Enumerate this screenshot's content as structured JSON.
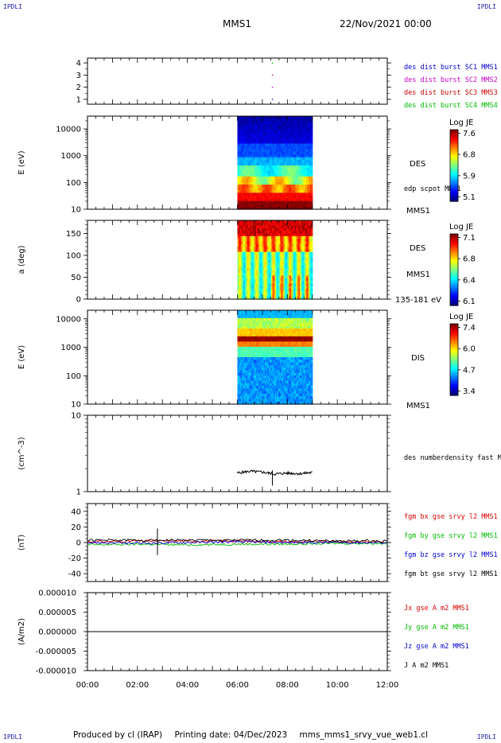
{
  "corners": {
    "tl": "IPDLI",
    "tr": "IPDLI",
    "bl": "IPDLI",
    "br": "IPDLI"
  },
  "header": {
    "spacecraft": "MMS1",
    "date": "22/Nov/2021 00:00"
  },
  "footer": {
    "produced_by": "Produced by cl (IRAP)",
    "printing_date": "Printing date: 04/Dec/2023",
    "product": "mms_mms1_srvy_vue_web1.cl"
  },
  "chart_data": [
    {
      "type": "scatter",
      "ylabel": "",
      "yticks": [
        "1",
        "2",
        "3",
        "4"
      ],
      "ylim": [
        0.6,
        4.4
      ],
      "legend": [
        {
          "text": "des dist burst SC1 MMS1",
          "color": "#0000cc"
        },
        {
          "text": "des dist burst SC2 MMS2",
          "color": "#cc00cc"
        },
        {
          "text": "des dist burst SC3 MMS3",
          "color": "#cc0000"
        },
        {
          "text": "des dist burst SC4 MMS4",
          "color": "#00bb00"
        }
      ],
      "series": [
        {
          "name": "des dist burst SC1 MMS1",
          "x": [
            7.4
          ],
          "y": [
            1
          ]
        },
        {
          "name": "des dist burst SC2 MMS2",
          "x": [
            7.4
          ],
          "y": [
            2
          ]
        },
        {
          "name": "des dist burst SC3 MMS3",
          "x": [
            7.4
          ],
          "y": [
            3
          ]
        },
        {
          "name": "des dist burst SC4 MMS4",
          "x": [
            7.4
          ],
          "y": [
            4
          ]
        }
      ]
    },
    {
      "type": "heatmap",
      "ylabel": "E (eV)",
      "yscale": "log",
      "yticks": [
        "10",
        "100",
        "1000",
        "10000"
      ],
      "ylim": [
        10,
        30000
      ],
      "data_window": [
        6.0,
        9.0
      ],
      "label_right": "DES",
      "label_sub": "edp scpot MMS1",
      "label_bottom": "MMS1",
      "colorbar": {
        "title": "Log JE",
        "ticks": [
          "7.6",
          "6.8",
          "5.9",
          "5.1"
        ],
        "range": [
          5.1,
          7.6
        ]
      }
    },
    {
      "type": "heatmap",
      "ylabel": "a (deg)",
      "yticks": [
        "0",
        "50",
        "100",
        "150"
      ],
      "ylim": [
        0,
        180
      ],
      "data_window": [
        6.0,
        9.0
      ],
      "label_right": "DES",
      "label_sub": "MMS1",
      "label_bottom": "135-181 eV",
      "colorbar": {
        "title": "Log JE",
        "ticks": [
          "7.1",
          "6.8",
          "6.4",
          "6.1"
        ],
        "range": [
          6.1,
          7.1
        ]
      }
    },
    {
      "type": "heatmap",
      "ylabel": "E (eV)",
      "yscale": "log",
      "yticks": [
        "10",
        "100",
        "1000",
        "10000"
      ],
      "ylim": [
        10,
        20000
      ],
      "data_window": [
        6.0,
        9.0
      ],
      "label_right": "DIS",
      "label_bottom": "MMS1",
      "colorbar": {
        "title": "Log JE",
        "ticks": [
          "7.4",
          "6.0",
          "4.7",
          "3.4"
        ],
        "range": [
          3.4,
          7.4
        ]
      }
    },
    {
      "type": "line",
      "ylabel": "(cm^-3)",
      "yscale": "log",
      "yticks": [
        "1",
        "10"
      ],
      "ylim": [
        1,
        10
      ],
      "legend": [
        {
          "text": "des numberdensity fast M",
          "color": "#000000"
        }
      ],
      "series": [
        {
          "name": "des numberdensity fast M",
          "x": [
            6.0,
            6.5,
            7.0,
            7.5,
            8.0,
            8.5,
            9.0
          ],
          "y": [
            1.75,
            1.85,
            1.8,
            1.7,
            1.75,
            1.72,
            1.78
          ]
        }
      ]
    },
    {
      "type": "line",
      "ylabel": "(nT)",
      "yticks": [
        "-40",
        "-20",
        "0",
        "20",
        "40"
      ],
      "ylim": [
        -50,
        50
      ],
      "legend": [
        {
          "text": "fgm bx gse srvy l2 MMS1",
          "color": "#dd0000"
        },
        {
          "text": "fgm by gse srvy l2 MMS1",
          "color": "#00bb00"
        },
        {
          "text": "fgm bz gse srvy l2 MMS1",
          "color": "#0000cc"
        },
        {
          "text": "fgm bt gse srvy l2 MMS1",
          "color": "#000000"
        }
      ],
      "series": [
        {
          "name": "fgm bx gse srvy l2 MMS1",
          "x": [
            0,
            2,
            4,
            6,
            8,
            10,
            12
          ],
          "y": [
            1,
            2,
            2,
            2,
            1,
            1,
            1
          ]
        },
        {
          "name": "fgm by gse srvy l2 MMS1",
          "x": [
            0,
            2,
            4,
            6,
            8,
            10,
            12
          ],
          "y": [
            -3,
            -2,
            -3,
            -2,
            -2,
            -1,
            -1
          ]
        },
        {
          "name": "fgm bz gse srvy l2 MMS1",
          "x": [
            0,
            2,
            4,
            6,
            8,
            10,
            12
          ],
          "y": [
            0,
            -1,
            0,
            1,
            0,
            0,
            0
          ]
        },
        {
          "name": "fgm bt gse srvy l2 MMS1",
          "x": [
            0,
            2,
            4,
            6,
            8,
            10,
            12
          ],
          "y": [
            3,
            3,
            3,
            3,
            3,
            2,
            2
          ]
        }
      ]
    },
    {
      "type": "line",
      "ylabel": "(A/m2)",
      "yticks": [
        "-0.000010",
        "-0.000005",
        "0.000000",
        "0.000005",
        "0.000010"
      ],
      "ylim": [
        -1e-05,
        1e-05
      ],
      "legend": [
        {
          "text": "Jx gse A m2 MMS1",
          "color": "#dd0000"
        },
        {
          "text": "Jy gse A m2 MMS1",
          "color": "#00bb00"
        },
        {
          "text": "Jz gse A m2 MMS1",
          "color": "#0000cc"
        },
        {
          "text": "J A m2 MMS1",
          "color": "#000000"
        }
      ],
      "series": [
        {
          "name": "J A m2 MMS1",
          "x": [
            0,
            12
          ],
          "y": [
            0,
            0
          ]
        }
      ]
    }
  ],
  "x_axis": {
    "ticks": [
      "00:00",
      "02:00",
      "04:00",
      "06:00",
      "08:00",
      "10:00",
      "12:00"
    ],
    "xlim": [
      0,
      12
    ]
  }
}
